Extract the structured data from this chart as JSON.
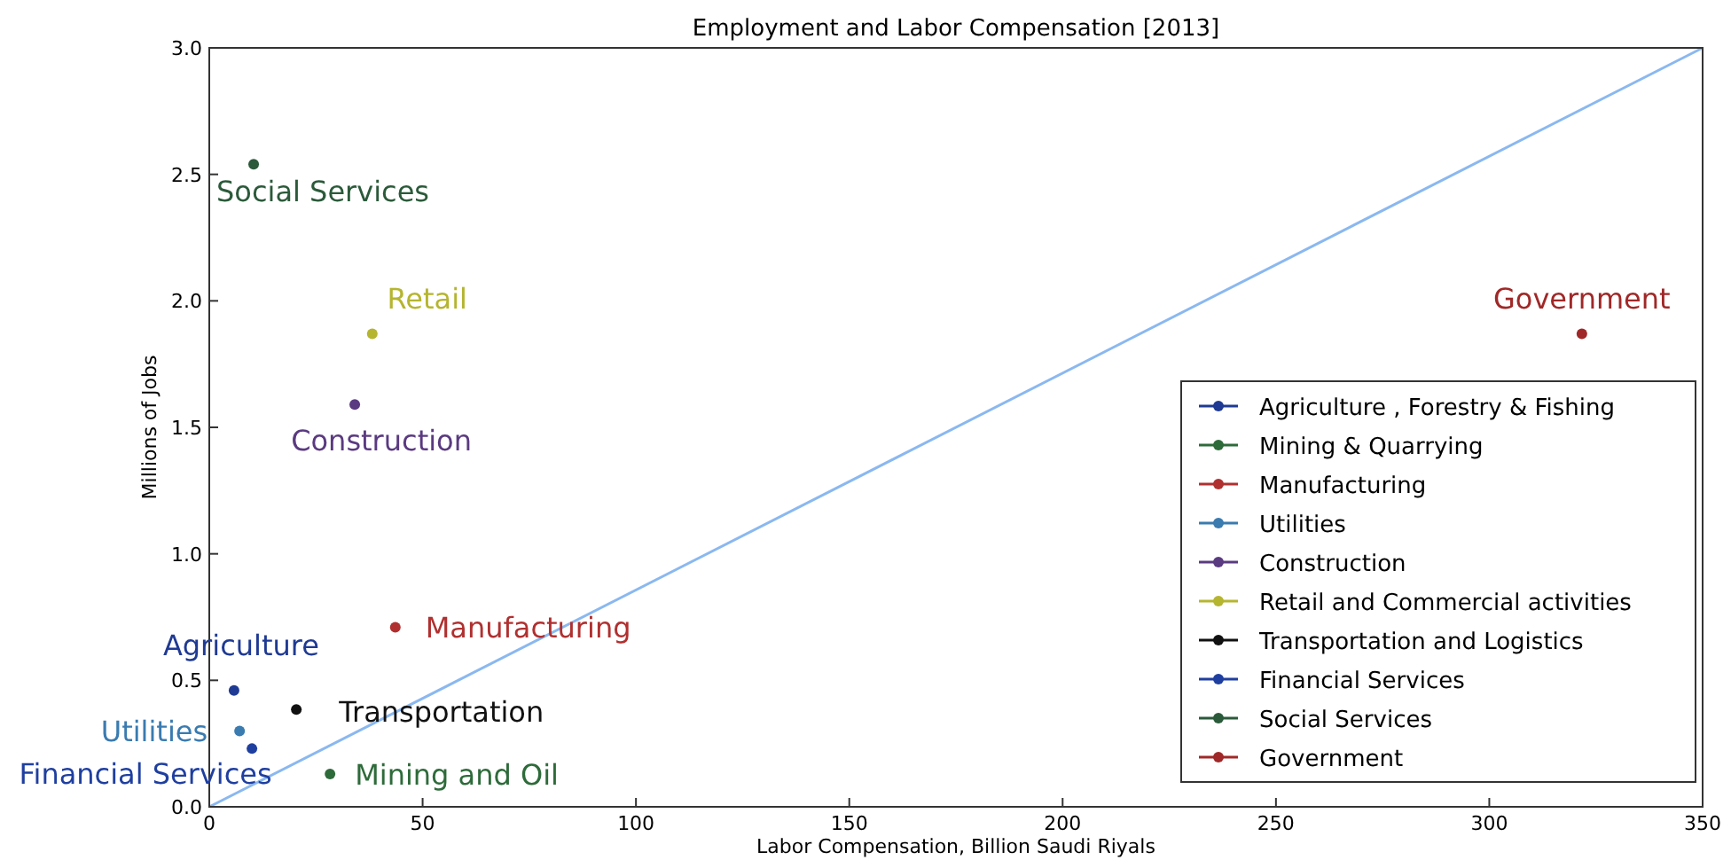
{
  "chart_data": {
    "type": "scatter",
    "title": "Employment and Labor Compensation [2013]",
    "xlabel": "Labor Compensation, Billion Saudi Riyals",
    "ylabel": "Millions of Jobs",
    "xlim": [
      0,
      350
    ],
    "xticks": [
      0,
      50,
      100,
      150,
      200,
      250,
      300,
      350
    ],
    "ylim": [
      0,
      3.0
    ],
    "yticks": [
      {
        "value": 0,
        "label": "0.0"
      },
      {
        "value": 0.5,
        "label": "0.5"
      },
      {
        "value": 1,
        "label": "1.0"
      },
      {
        "value": 1.5,
        "label": "1.5"
      },
      {
        "value": 2,
        "label": "2.0"
      },
      {
        "value": 2.5,
        "label": "2.5"
      },
      {
        "value": 3,
        "label": "3.0"
      }
    ],
    "grid": false,
    "legend": "bottom right",
    "marker": "circle",
    "series": [
      {
        "name": "Agriculture , Forestry & Fishing",
        "color": "#1f3a93",
        "x": [
          5.8
        ],
        "values": [
          0.46
        ]
      },
      {
        "name": "Mining & Quarrying",
        "color": "#2e6b3a",
        "x": [
          28.3
        ],
        "values": [
          0.13
        ]
      },
      {
        "name": "Manufacturing",
        "color": "#b03030",
        "x": [
          43.6
        ],
        "values": [
          0.71
        ]
      },
      {
        "name": "Utilities",
        "color": "#3a7bb0",
        "x": [
          7.1
        ],
        "values": [
          0.3
        ]
      },
      {
        "name": "Construction",
        "color": "#5a3a80",
        "x": [
          34.1
        ],
        "values": [
          1.59
        ]
      },
      {
        "name": "Retail and Commercial activities",
        "color": "#b5b530",
        "x": [
          38.2
        ],
        "values": [
          1.87
        ]
      },
      {
        "name": "Transportation and Logistics",
        "color": "#111111",
        "x": [
          20.4
        ],
        "values": [
          0.385
        ]
      },
      {
        "name": "Financial Services",
        "color": "#1f3fa0",
        "x": [
          10.0
        ],
        "values": [
          0.23
        ]
      },
      {
        "name": "Social Services",
        "color": "#2b5a3a",
        "x": [
          10.4
        ],
        "values": [
          2.54
        ]
      },
      {
        "name": "Government",
        "color": "#a02828",
        "x": [
          321.7
        ],
        "values": [
          1.87
        ]
      },
      {
        "type": "line",
        "color": "#8ab8f0",
        "marker": "none",
        "x": [
          0,
          350
        ],
        "values": [
          0,
          3.0
        ]
      }
    ],
    "annotations": [
      {
        "text": "Agriculture",
        "x": 5.8,
        "y": 0.46
      },
      {
        "text": "Mining and Oil",
        "x": 28.3,
        "y": 0.13
      },
      {
        "text": "Manufacturing",
        "x": 43.6,
        "y": 0.71
      },
      {
        "text": "Utilities",
        "x": 7.1,
        "y": 0.3
      },
      {
        "text": "Construction",
        "x": 34.1,
        "y": 1.59
      },
      {
        "text": "Retail",
        "x": 38.2,
        "y": 1.87
      },
      {
        "text": "Transportation",
        "x": 20.4,
        "y": 0.385
      },
      {
        "text": "Financial Services",
        "x": 10.0,
        "y": 0.23
      },
      {
        "text": "Social Services",
        "x": 10.4,
        "y": 2.54
      },
      {
        "text": "Government",
        "x": 321.7,
        "y": 1.87
      }
    ]
  }
}
